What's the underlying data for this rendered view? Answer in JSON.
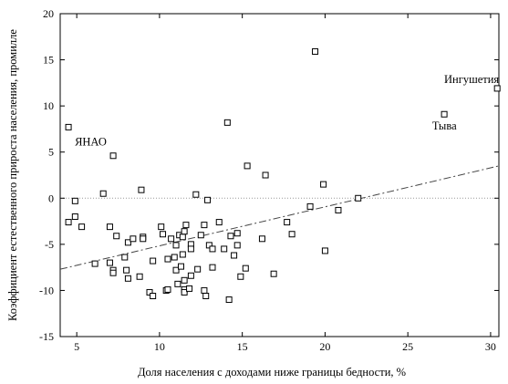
{
  "chart_data": {
    "type": "scatter",
    "xlabel": "Доля населения с доходами ниже границы бедности, %",
    "ylabel": "Коэффициент естественного прироста населения, промилле",
    "xlim": [
      4,
      30.5
    ],
    "ylim": [
      -15,
      20
    ],
    "xticks": [
      5,
      10,
      15,
      20,
      25,
      30
    ],
    "yticks": [
      -15,
      -10,
      -5,
      0,
      5,
      10,
      15,
      20
    ],
    "grid": false,
    "zero_line": true,
    "colors": {
      "marker": "#000000",
      "trend": "#444444",
      "zero": "#999999",
      "axis": "#000000"
    },
    "trend_line": {
      "style": "dash-dot",
      "points": [
        [
          4,
          -7.7
        ],
        [
          30.5,
          3.5
        ]
      ]
    },
    "annotations": [
      {
        "text": "ЯНАО",
        "x": 4.5,
        "y": 7.7
      },
      {
        "text": "Ингушетия",
        "x": 30.4,
        "y": 11.9
      },
      {
        "text": "Тыва",
        "x": 27.1,
        "y": 9.1
      }
    ],
    "points": [
      [
        4.5,
        7.7
      ],
      [
        4.5,
        -2.6
      ],
      [
        4.9,
        -0.3
      ],
      [
        4.9,
        -2.0
      ],
      [
        5.3,
        -3.1
      ],
      [
        6.1,
        -7.1
      ],
      [
        6.6,
        0.5
      ],
      [
        7.0,
        -3.1
      ],
      [
        7.0,
        -7.0
      ],
      [
        7.2,
        4.6
      ],
      [
        7.2,
        -7.8
      ],
      [
        7.2,
        -8.1
      ],
      [
        7.4,
        -4.1
      ],
      [
        7.9,
        -6.4
      ],
      [
        8.0,
        -7.8
      ],
      [
        8.1,
        -4.8
      ],
      [
        8.1,
        -8.7
      ],
      [
        8.4,
        -4.4
      ],
      [
        8.8,
        -8.5
      ],
      [
        8.9,
        0.9
      ],
      [
        9.0,
        -4.2
      ],
      [
        9.0,
        -4.4
      ],
      [
        9.4,
        -10.2
      ],
      [
        9.6,
        -10.6
      ],
      [
        9.6,
        -6.8
      ],
      [
        10.1,
        -3.1
      ],
      [
        10.2,
        -3.9
      ],
      [
        10.4,
        -10.0
      ],
      [
        10.5,
        -9.9
      ],
      [
        10.5,
        -6.6
      ],
      [
        10.7,
        -4.4
      ],
      [
        10.9,
        -6.4
      ],
      [
        11.0,
        -5.1
      ],
      [
        11.0,
        -7.8
      ],
      [
        11.1,
        -9.3
      ],
      [
        11.2,
        -4.0
      ],
      [
        11.3,
        -7.4
      ],
      [
        11.4,
        -6.1
      ],
      [
        11.4,
        -4.2
      ],
      [
        11.5,
        -3.6
      ],
      [
        11.6,
        -2.9
      ],
      [
        11.5,
        -8.9
      ],
      [
        11.5,
        -9.9
      ],
      [
        11.5,
        -10.2
      ],
      [
        11.8,
        -9.8
      ],
      [
        11.9,
        -5.0
      ],
      [
        11.9,
        -5.5
      ],
      [
        11.9,
        -8.4
      ],
      [
        12.2,
        0.4
      ],
      [
        12.3,
        -7.7
      ],
      [
        12.5,
        -4.0
      ],
      [
        12.7,
        -2.9
      ],
      [
        12.7,
        -10.0
      ],
      [
        12.8,
        -10.6
      ],
      [
        12.9,
        -0.2
      ],
      [
        13.0,
        -5.1
      ],
      [
        13.2,
        -5.5
      ],
      [
        13.2,
        -7.5
      ],
      [
        13.6,
        -2.6
      ],
      [
        13.9,
        -5.5
      ],
      [
        14.1,
        8.2
      ],
      [
        14.2,
        -11.0
      ],
      [
        14.3,
        -4.1
      ],
      [
        14.5,
        -6.2
      ],
      [
        14.7,
        -3.8
      ],
      [
        14.7,
        -5.1
      ],
      [
        14.9,
        -8.5
      ],
      [
        15.2,
        -7.6
      ],
      [
        15.3,
        3.5
      ],
      [
        16.2,
        -4.4
      ],
      [
        16.4,
        2.5
      ],
      [
        16.9,
        -8.2
      ],
      [
        17.7,
        -2.6
      ],
      [
        18.0,
        -3.9
      ],
      [
        19.1,
        -0.9
      ],
      [
        19.4,
        15.9
      ],
      [
        19.9,
        1.5
      ],
      [
        20.0,
        -5.7
      ],
      [
        20.8,
        -1.3
      ],
      [
        22.0,
        0.0
      ],
      [
        27.2,
        9.1
      ],
      [
        30.4,
        11.9
      ]
    ]
  }
}
